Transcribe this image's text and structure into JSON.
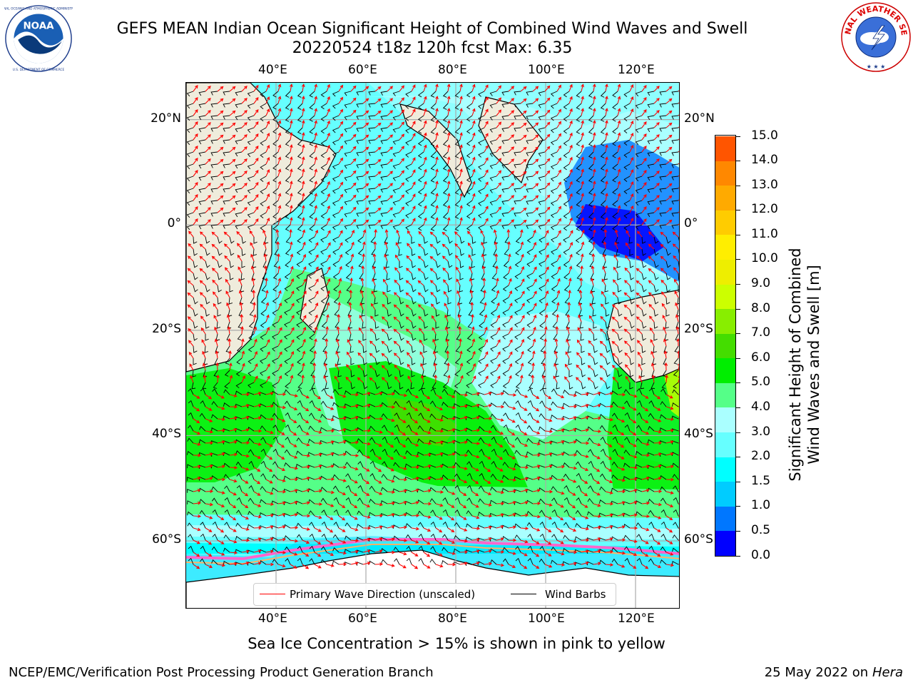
{
  "header": {
    "title_line1": "GEFS MEAN Indian Ocean Significant Height of Combined Wind Waves and Swell",
    "title_line2": "20220524 t18z 120h fcst   Max: 6.35"
  },
  "logos": {
    "noaa": {
      "text": "NOAA",
      "ring_text": "NATIONAL OCEANIC AND ATMOSPHERIC ADMINISTRATION · U.S. DEPARTMENT OF COMMERCE"
    },
    "nws": {
      "ring_text": "NATIONAL WEATHER SERVICE"
    }
  },
  "map": {
    "lon_labels": [
      "40°E",
      "60°E",
      "80°E",
      "100°E",
      "120°E"
    ],
    "lat_labels": [
      "20°N",
      "0°",
      "20°S",
      "40°S",
      "60°S"
    ],
    "lon_range": [
      20,
      130
    ],
    "lat_range": [
      -73,
      27
    ],
    "land_color": "#efecdc",
    "ice_colors": [
      "#ff66cc",
      "#ffb366",
      "#ffee44"
    ]
  },
  "colorbar": {
    "label_line1": "Significant Height of Combined",
    "label_line2": "Wind Waves and Swell [m]",
    "ticks": [
      "0.0",
      "0.5",
      "1.0",
      "1.5",
      "2.0",
      "3.0",
      "4.0",
      "5.0",
      "6.0",
      "7.0",
      "8.0",
      "9.0",
      "10.0",
      "11.0",
      "12.0",
      "13.0",
      "14.0",
      "15.0"
    ],
    "colors": [
      "#0000ff",
      "#0077ff",
      "#00ccff",
      "#00ffff",
      "#66ffff",
      "#aaffff",
      "#55ff88",
      "#00ee00",
      "#44dd00",
      "#88ee00",
      "#ccff00",
      "#eeee00",
      "#ffee00",
      "#ffcc00",
      "#ffaa00",
      "#ff8800",
      "#ff5500",
      "#ff0000"
    ]
  },
  "legend": {
    "wave_label": "Primary Wave Direction (unscaled)",
    "wind_label": "Wind Barbs",
    "wave_color": "#ff0000",
    "wind_color": "#000000"
  },
  "footnote": "Sea Ice Concentration > 15% is shown in pink to yellow",
  "footer": {
    "left": "NCEP/EMC/Verification Post Processing Product Generation Branch",
    "right_date": "25 May 2022 on",
    "right_host": "Hera"
  }
}
